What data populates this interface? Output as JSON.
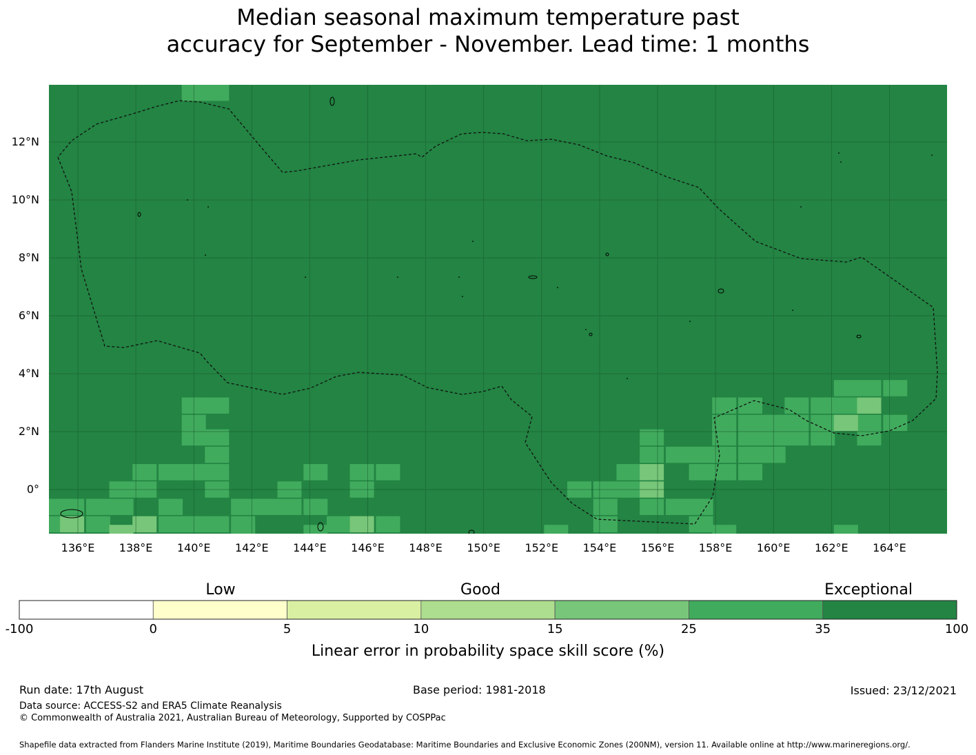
{
  "title": {
    "line1": "Median seasonal maximum temperature past",
    "line2": "accuracy for September - November. Lead time: 1 months"
  },
  "map": {
    "lat_labels": [
      "12°N",
      "10°N",
      "8°N",
      "6°N",
      "4°N",
      "2°N",
      "0°"
    ],
    "lon_labels": [
      "136°E",
      "138°E",
      "140°E",
      "142°E",
      "144°E",
      "146°E",
      "148°E",
      "150°E",
      "152°E",
      "154°E",
      "156°E",
      "158°E",
      "160°E",
      "162°E",
      "164°E"
    ],
    "lat_range": [
      -1.5,
      14.0
    ],
    "lon_range": [
      134.0,
      165.0
    ],
    "grid_resolution_deg": 0.833,
    "background_class": "35-100",
    "cells": [
      {
        "lon": 140.0,
        "lat": 13.7,
        "class": "25-35"
      },
      {
        "lon": 140.8,
        "lat": 13.7,
        "class": "25-35"
      },
      {
        "lon": 134.0,
        "lat": 3.5,
        "class": "25-35"
      },
      {
        "lon": 140.0,
        "lat": 2.9,
        "class": "25-35"
      },
      {
        "lon": 140.8,
        "lat": 2.9,
        "class": "25-35"
      },
      {
        "lon": 140.0,
        "lat": 2.3,
        "class": "25-35"
      },
      {
        "lon": 140.0,
        "lat": 1.8,
        "class": "25-35"
      },
      {
        "lon": 140.8,
        "lat": 1.8,
        "class": "25-35"
      },
      {
        "lon": 140.8,
        "lat": 1.2,
        "class": "25-35"
      },
      {
        "lon": 138.3,
        "lat": 0.6,
        "class": "25-35"
      },
      {
        "lon": 139.2,
        "lat": 0.6,
        "class": "25-35"
      },
      {
        "lon": 140.0,
        "lat": 0.6,
        "class": "25-35"
      },
      {
        "lon": 140.8,
        "lat": 0.6,
        "class": "25-35"
      },
      {
        "lon": 137.5,
        "lat": 0.0,
        "class": "25-35"
      },
      {
        "lon": 138.3,
        "lat": 0.0,
        "class": "25-35"
      },
      {
        "lon": 140.8,
        "lat": 0.0,
        "class": "25-35"
      },
      {
        "lon": 143.3,
        "lat": 0.0,
        "class": "25-35"
      },
      {
        "lon": 144.2,
        "lat": 0.6,
        "class": "25-35"
      },
      {
        "lon": 145.8,
        "lat": 0.6,
        "class": "25-35"
      },
      {
        "lon": 146.7,
        "lat": 0.6,
        "class": "25-35"
      },
      {
        "lon": 145.8,
        "lat": 0.0,
        "class": "25-35"
      },
      {
        "lon": 135.0,
        "lat": -0.6,
        "class": "25-35"
      },
      {
        "lon": 135.8,
        "lat": -0.6,
        "class": "25-35"
      },
      {
        "lon": 136.7,
        "lat": -0.6,
        "class": "25-35"
      },
      {
        "lon": 137.5,
        "lat": -0.6,
        "class": "25-35"
      },
      {
        "lon": 139.2,
        "lat": -0.6,
        "class": "25-35"
      },
      {
        "lon": 141.7,
        "lat": -0.6,
        "class": "25-35"
      },
      {
        "lon": 142.5,
        "lat": -0.6,
        "class": "25-35"
      },
      {
        "lon": 143.3,
        "lat": -0.6,
        "class": "25-35"
      },
      {
        "lon": 144.2,
        "lat": -0.6,
        "class": "25-35"
      },
      {
        "lon": 134.2,
        "lat": -1.2,
        "class": "25-35"
      },
      {
        "lon": 135.0,
        "lat": -1.2,
        "class": "25-35"
      },
      {
        "lon": 136.7,
        "lat": -1.2,
        "class": "25-35"
      },
      {
        "lon": 139.2,
        "lat": -1.2,
        "class": "25-35"
      },
      {
        "lon": 140.0,
        "lat": -1.2,
        "class": "25-35"
      },
      {
        "lon": 140.8,
        "lat": -1.2,
        "class": "25-35"
      },
      {
        "lon": 141.7,
        "lat": -1.2,
        "class": "25-35"
      },
      {
        "lon": 145.0,
        "lat": -1.2,
        "class": "25-35"
      },
      {
        "lon": 145.8,
        "lat": -1.2,
        "class": "25-35"
      },
      {
        "lon": 146.7,
        "lat": -1.2,
        "class": "25-35"
      },
      {
        "lon": 137.5,
        "lat": -1.5,
        "class": "25-35"
      },
      {
        "lon": 144.2,
        "lat": -1.5,
        "class": "25-35"
      },
      {
        "lon": 141.7,
        "lat": -1.5,
        "class": "25-35"
      },
      {
        "lon": 135.8,
        "lat": -1.2,
        "class": "15-25"
      },
      {
        "lon": 138.3,
        "lat": -1.2,
        "class": "15-25"
      },
      {
        "lon": 145.8,
        "lat": -1.2,
        "class": "15-25"
      },
      {
        "lon": 137.5,
        "lat": -1.5,
        "class": "15-25"
      },
      {
        "lon": 153.3,
        "lat": 0.0,
        "class": "25-35"
      },
      {
        "lon": 154.2,
        "lat": 0.0,
        "class": "25-35"
      },
      {
        "lon": 155.0,
        "lat": 0.0,
        "class": "25-35"
      },
      {
        "lon": 155.0,
        "lat": 0.6,
        "class": "25-35"
      },
      {
        "lon": 154.2,
        "lat": -0.6,
        "class": "25-35"
      },
      {
        "lon": 154.2,
        "lat": -1.2,
        "class": "25-35"
      },
      {
        "lon": 155.8,
        "lat": 1.8,
        "class": "25-35"
      },
      {
        "lon": 155.8,
        "lat": 1.2,
        "class": "25-35"
      },
      {
        "lon": 156.7,
        "lat": 1.2,
        "class": "25-35"
      },
      {
        "lon": 157.5,
        "lat": 1.2,
        "class": "25-35"
      },
      {
        "lon": 157.5,
        "lat": 0.6,
        "class": "25-35"
      },
      {
        "lon": 155.8,
        "lat": -0.6,
        "class": "25-35"
      },
      {
        "lon": 156.7,
        "lat": -0.6,
        "class": "25-35"
      },
      {
        "lon": 157.5,
        "lat": -0.6,
        "class": "25-35"
      },
      {
        "lon": 157.5,
        "lat": -1.2,
        "class": "25-35"
      },
      {
        "lon": 152.5,
        "lat": -1.5,
        "class": "25-35"
      },
      {
        "lon": 158.3,
        "lat": -1.5,
        "class": "25-35"
      },
      {
        "lon": 155.8,
        "lat": 0.6,
        "class": "15-25"
      },
      {
        "lon": 155.8,
        "lat": 0.0,
        "class": "15-25"
      },
      {
        "lon": 158.3,
        "lat": 2.9,
        "class": "25-35"
      },
      {
        "lon": 159.2,
        "lat": 2.9,
        "class": "25-35"
      },
      {
        "lon": 158.3,
        "lat": 2.3,
        "class": "25-35"
      },
      {
        "lon": 159.2,
        "lat": 2.3,
        "class": "25-35"
      },
      {
        "lon": 160.0,
        "lat": 2.3,
        "class": "25-35"
      },
      {
        "lon": 158.3,
        "lat": 1.8,
        "class": "25-35"
      },
      {
        "lon": 159.2,
        "lat": 1.8,
        "class": "25-35"
      },
      {
        "lon": 160.0,
        "lat": 1.8,
        "class": "25-35"
      },
      {
        "lon": 160.8,
        "lat": 1.8,
        "class": "25-35"
      },
      {
        "lon": 158.3,
        "lat": 1.2,
        "class": "25-35"
      },
      {
        "lon": 159.2,
        "lat": 1.2,
        "class": "25-35"
      },
      {
        "lon": 160.0,
        "lat": 1.2,
        "class": "25-35"
      },
      {
        "lon": 158.3,
        "lat": 0.6,
        "class": "25-35"
      },
      {
        "lon": 159.2,
        "lat": 0.6,
        "class": "25-35"
      },
      {
        "lon": 160.8,
        "lat": 2.9,
        "class": "25-35"
      },
      {
        "lon": 161.7,
        "lat": 2.9,
        "class": "25-35"
      },
      {
        "lon": 160.8,
        "lat": 2.3,
        "class": "25-35"
      },
      {
        "lon": 161.7,
        "lat": 2.3,
        "class": "25-35"
      },
      {
        "lon": 161.7,
        "lat": 1.8,
        "class": "25-35"
      },
      {
        "lon": 162.5,
        "lat": 3.5,
        "class": "25-35"
      },
      {
        "lon": 163.3,
        "lat": 3.5,
        "class": "25-35"
      },
      {
        "lon": 164.2,
        "lat": 3.5,
        "class": "25-35"
      },
      {
        "lon": 162.5,
        "lat": 2.9,
        "class": "25-35"
      },
      {
        "lon": 163.3,
        "lat": 2.3,
        "class": "25-35"
      },
      {
        "lon": 164.2,
        "lat": 2.3,
        "class": "25-35"
      },
      {
        "lon": 163.3,
        "lat": 1.8,
        "class": "25-35"
      },
      {
        "lon": 162.5,
        "lat": -1.5,
        "class": "25-35"
      },
      {
        "lon": 163.3,
        "lat": 2.9,
        "class": "15-25"
      },
      {
        "lon": 162.5,
        "lat": 2.3,
        "class": "15-25"
      }
    ]
  },
  "colorbar": {
    "categories": [
      "Low",
      "Good",
      "Exceptional"
    ],
    "bins": [
      {
        "label": "-100 to 0",
        "color": "#ffffff"
      },
      {
        "label": "0 to 5",
        "color": "#ffffcc"
      },
      {
        "label": "5 to 10",
        "color": "#d9f0a3"
      },
      {
        "label": "10 to 15",
        "color": "#addd8e"
      },
      {
        "label": "15 to 25",
        "color": "#78c679"
      },
      {
        "label": "25 to 35",
        "color": "#41ab5d"
      },
      {
        "label": "35 to 100",
        "color": "#238443"
      }
    ],
    "ticks": [
      "-100",
      "0",
      "5",
      "10",
      "15",
      "25",
      "35",
      "100"
    ],
    "title": "Linear error in probability space skill score (%)"
  },
  "class_colors": {
    "35-100": "#238443",
    "25-35": "#41ab5d",
    "15-25": "#78c679"
  },
  "footer": {
    "run_date": "Run date: 17th August",
    "base_period": "Base period: 1981-2018",
    "issued": "Issued: 23/12/2021",
    "data_source": "Data source: ACCESS-S2 and ERA5 Climate Reanalysis",
    "copyright": "© Commonwealth of Australia 2021, Australian Bureau of Meteorology, Supported by COSPPac",
    "shapefile": "Shapefile data extracted from Flanders Marine Institute (2019), Maritime Boundaries Geodatabase: Maritime Boundaries and Exclusive Economic Zones (200NM), version 11. Available online at http://www.marineregions.org/."
  }
}
